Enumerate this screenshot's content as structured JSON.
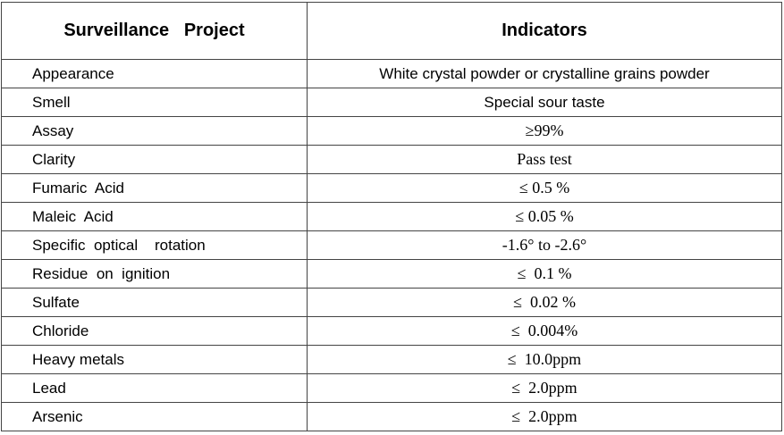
{
  "table": {
    "header": [
      "Surveillance   Project",
      "Indicators"
    ],
    "rows": [
      [
        "Appearance",
        "White crystal powder or crystalline grains powder"
      ],
      [
        "Smell",
        "Special sour taste"
      ],
      [
        "Assay",
        "≥99%"
      ],
      [
        "Clarity",
        "Pass test"
      ],
      [
        "Fumaric  Acid",
        "≤ 0.5 %"
      ],
      [
        "Maleic  Acid",
        "≤ 0.05 %"
      ],
      [
        "Specific  optical    rotation",
        "-1.6° to -2.6°"
      ],
      [
        "Residue  on  ignition",
        "≤  0.1 %"
      ],
      [
        "Sulfate",
        "≤  0.02 %"
      ],
      [
        "Chloride",
        "≤  0.004%"
      ],
      [
        "Heavy metals",
        "≤  10.0ppm"
      ],
      [
        "Lead",
        "≤  2.0ppm"
      ],
      [
        "Arsenic",
        "≤  2.0ppm"
      ]
    ]
  }
}
